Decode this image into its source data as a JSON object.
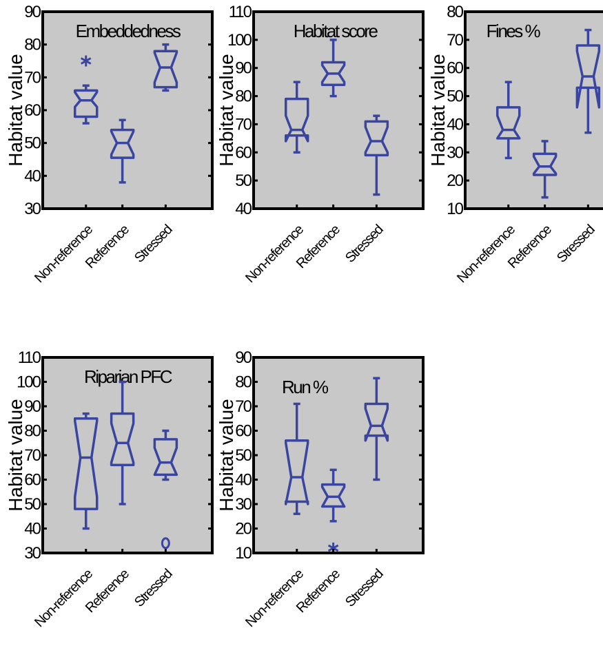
{
  "colors": {
    "box": "#3a45a0",
    "panel_bg": "#c8c8c8",
    "frame": "#000000"
  },
  "chart_data": [
    {
      "type": "box",
      "title": "Embeddedness",
      "ylabel": "Habitat value",
      "ylim": [
        30,
        90
      ],
      "yticks": [
        30,
        40,
        50,
        60,
        70,
        80,
        90
      ],
      "categories": [
        "Non-reference",
        "Reference",
        "Stressed"
      ],
      "boxes": [
        {
          "q1": 58,
          "median": 63,
          "q3": 66,
          "notch_lo": 61,
          "notch_hi": 65.5,
          "whisker_lo": 56,
          "whisker_hi": 67.5,
          "outliers": [
            {
              "value": 75,
              "marker": "star"
            }
          ]
        },
        {
          "q1": 45.5,
          "median": 50,
          "q3": 54,
          "notch_lo": 46.5,
          "notch_hi": 53.5,
          "whisker_lo": 38,
          "whisker_hi": 57,
          "outliers": []
        },
        {
          "q1": 67,
          "median": 73,
          "q3": 78,
          "notch_lo": 68.5,
          "notch_hi": 77.5,
          "whisker_lo": 66,
          "whisker_hi": 80,
          "outliers": []
        }
      ]
    },
    {
      "type": "box",
      "title": "Habitat score",
      "ylabel": "Habitat value",
      "ylim": [
        40,
        110
      ],
      "yticks": [
        40,
        50,
        60,
        70,
        80,
        90,
        100,
        110
      ],
      "categories": [
        "Non-reference",
        "Reference",
        "Stressed"
      ],
      "boxes": [
        {
          "q1": 66,
          "median": 68,
          "q3": 79,
          "notch_lo": 64,
          "notch_hi": 73,
          "whisker_lo": 60,
          "whisker_hi": 85,
          "outliers": []
        },
        {
          "q1": 84,
          "median": 88,
          "q3": 92,
          "notch_lo": 85,
          "notch_hi": 91,
          "whisker_lo": 80,
          "whisker_hi": 100,
          "outliers": []
        },
        {
          "q1": 59,
          "median": 64,
          "q3": 71,
          "notch_lo": 60,
          "notch_hi": 69,
          "whisker_lo": 45,
          "whisker_hi": 73,
          "outliers": []
        }
      ]
    },
    {
      "type": "box",
      "title": "Fines %",
      "ylabel": "Habitat value",
      "ylim": [
        10,
        80
      ],
      "yticks": [
        10,
        20,
        30,
        40,
        50,
        60,
        70,
        80
      ],
      "categories": [
        "Non-reference",
        "Reference",
        "Stressed"
      ],
      "boxes": [
        {
          "q1": 35,
          "median": 38,
          "q3": 46,
          "notch_lo": 35,
          "notch_hi": 43,
          "whisker_lo": 28,
          "whisker_hi": 55,
          "outliers": []
        },
        {
          "q1": 22,
          "median": 25,
          "q3": 29.5,
          "notch_lo": 22.5,
          "notch_hi": 28.5,
          "whisker_lo": 14,
          "whisker_hi": 34,
          "outliers": []
        },
        {
          "q1": 53,
          "median": 57,
          "q3": 68,
          "notch_lo": 46,
          "notch_hi": 66,
          "whisker_lo": 37,
          "whisker_hi": 73.5,
          "outliers": []
        }
      ]
    },
    {
      "type": "box",
      "title": "Riparian PFC",
      "ylabel": "Habitat value",
      "ylim": [
        30,
        110
      ],
      "yticks": [
        30,
        40,
        50,
        60,
        70,
        80,
        90,
        100,
        110
      ],
      "categories": [
        "Non-reference",
        "Reference",
        "Stressed"
      ],
      "boxes": [
        {
          "q1": 48,
          "median": 69,
          "q3": 85,
          "notch_lo": 53,
          "notch_hi": 84,
          "whisker_lo": 40,
          "whisker_hi": 87,
          "outliers": []
        },
        {
          "q1": 66,
          "median": 75,
          "q3": 87,
          "notch_lo": 67,
          "notch_hi": 83,
          "whisker_lo": 50,
          "whisker_hi": 100,
          "outliers": []
        },
        {
          "q1": 62,
          "median": 67,
          "q3": 76.5,
          "notch_lo": 62,
          "notch_hi": 73,
          "whisker_lo": 60,
          "whisker_hi": 80,
          "outliers": [
            {
              "value": 34,
              "marker": "circle"
            }
          ]
        }
      ]
    },
    {
      "type": "box",
      "title": "Run %",
      "ylabel": "Habitat value",
      "ylim": [
        10,
        90
      ],
      "yticks": [
        10,
        20,
        30,
        40,
        50,
        60,
        70,
        80,
        90
      ],
      "categories": [
        "Non-reference",
        "Reference",
        "Stressed"
      ],
      "boxes": [
        {
          "q1": 31,
          "median": 41,
          "q3": 56,
          "notch_lo": 30,
          "notch_hi": 55,
          "whisker_lo": 26,
          "whisker_hi": 71,
          "outliers": []
        },
        {
          "q1": 29,
          "median": 33,
          "q3": 38,
          "notch_lo": 29,
          "notch_hi": 37,
          "whisker_lo": 23,
          "whisker_hi": 44,
          "outliers": [
            {
              "value": 12,
              "marker": "star"
            }
          ]
        },
        {
          "q1": 58,
          "median": 62,
          "q3": 71,
          "notch_lo": 56,
          "notch_hi": 69,
          "whisker_lo": 40,
          "whisker_hi": 81.5,
          "outliers": []
        }
      ]
    }
  ]
}
